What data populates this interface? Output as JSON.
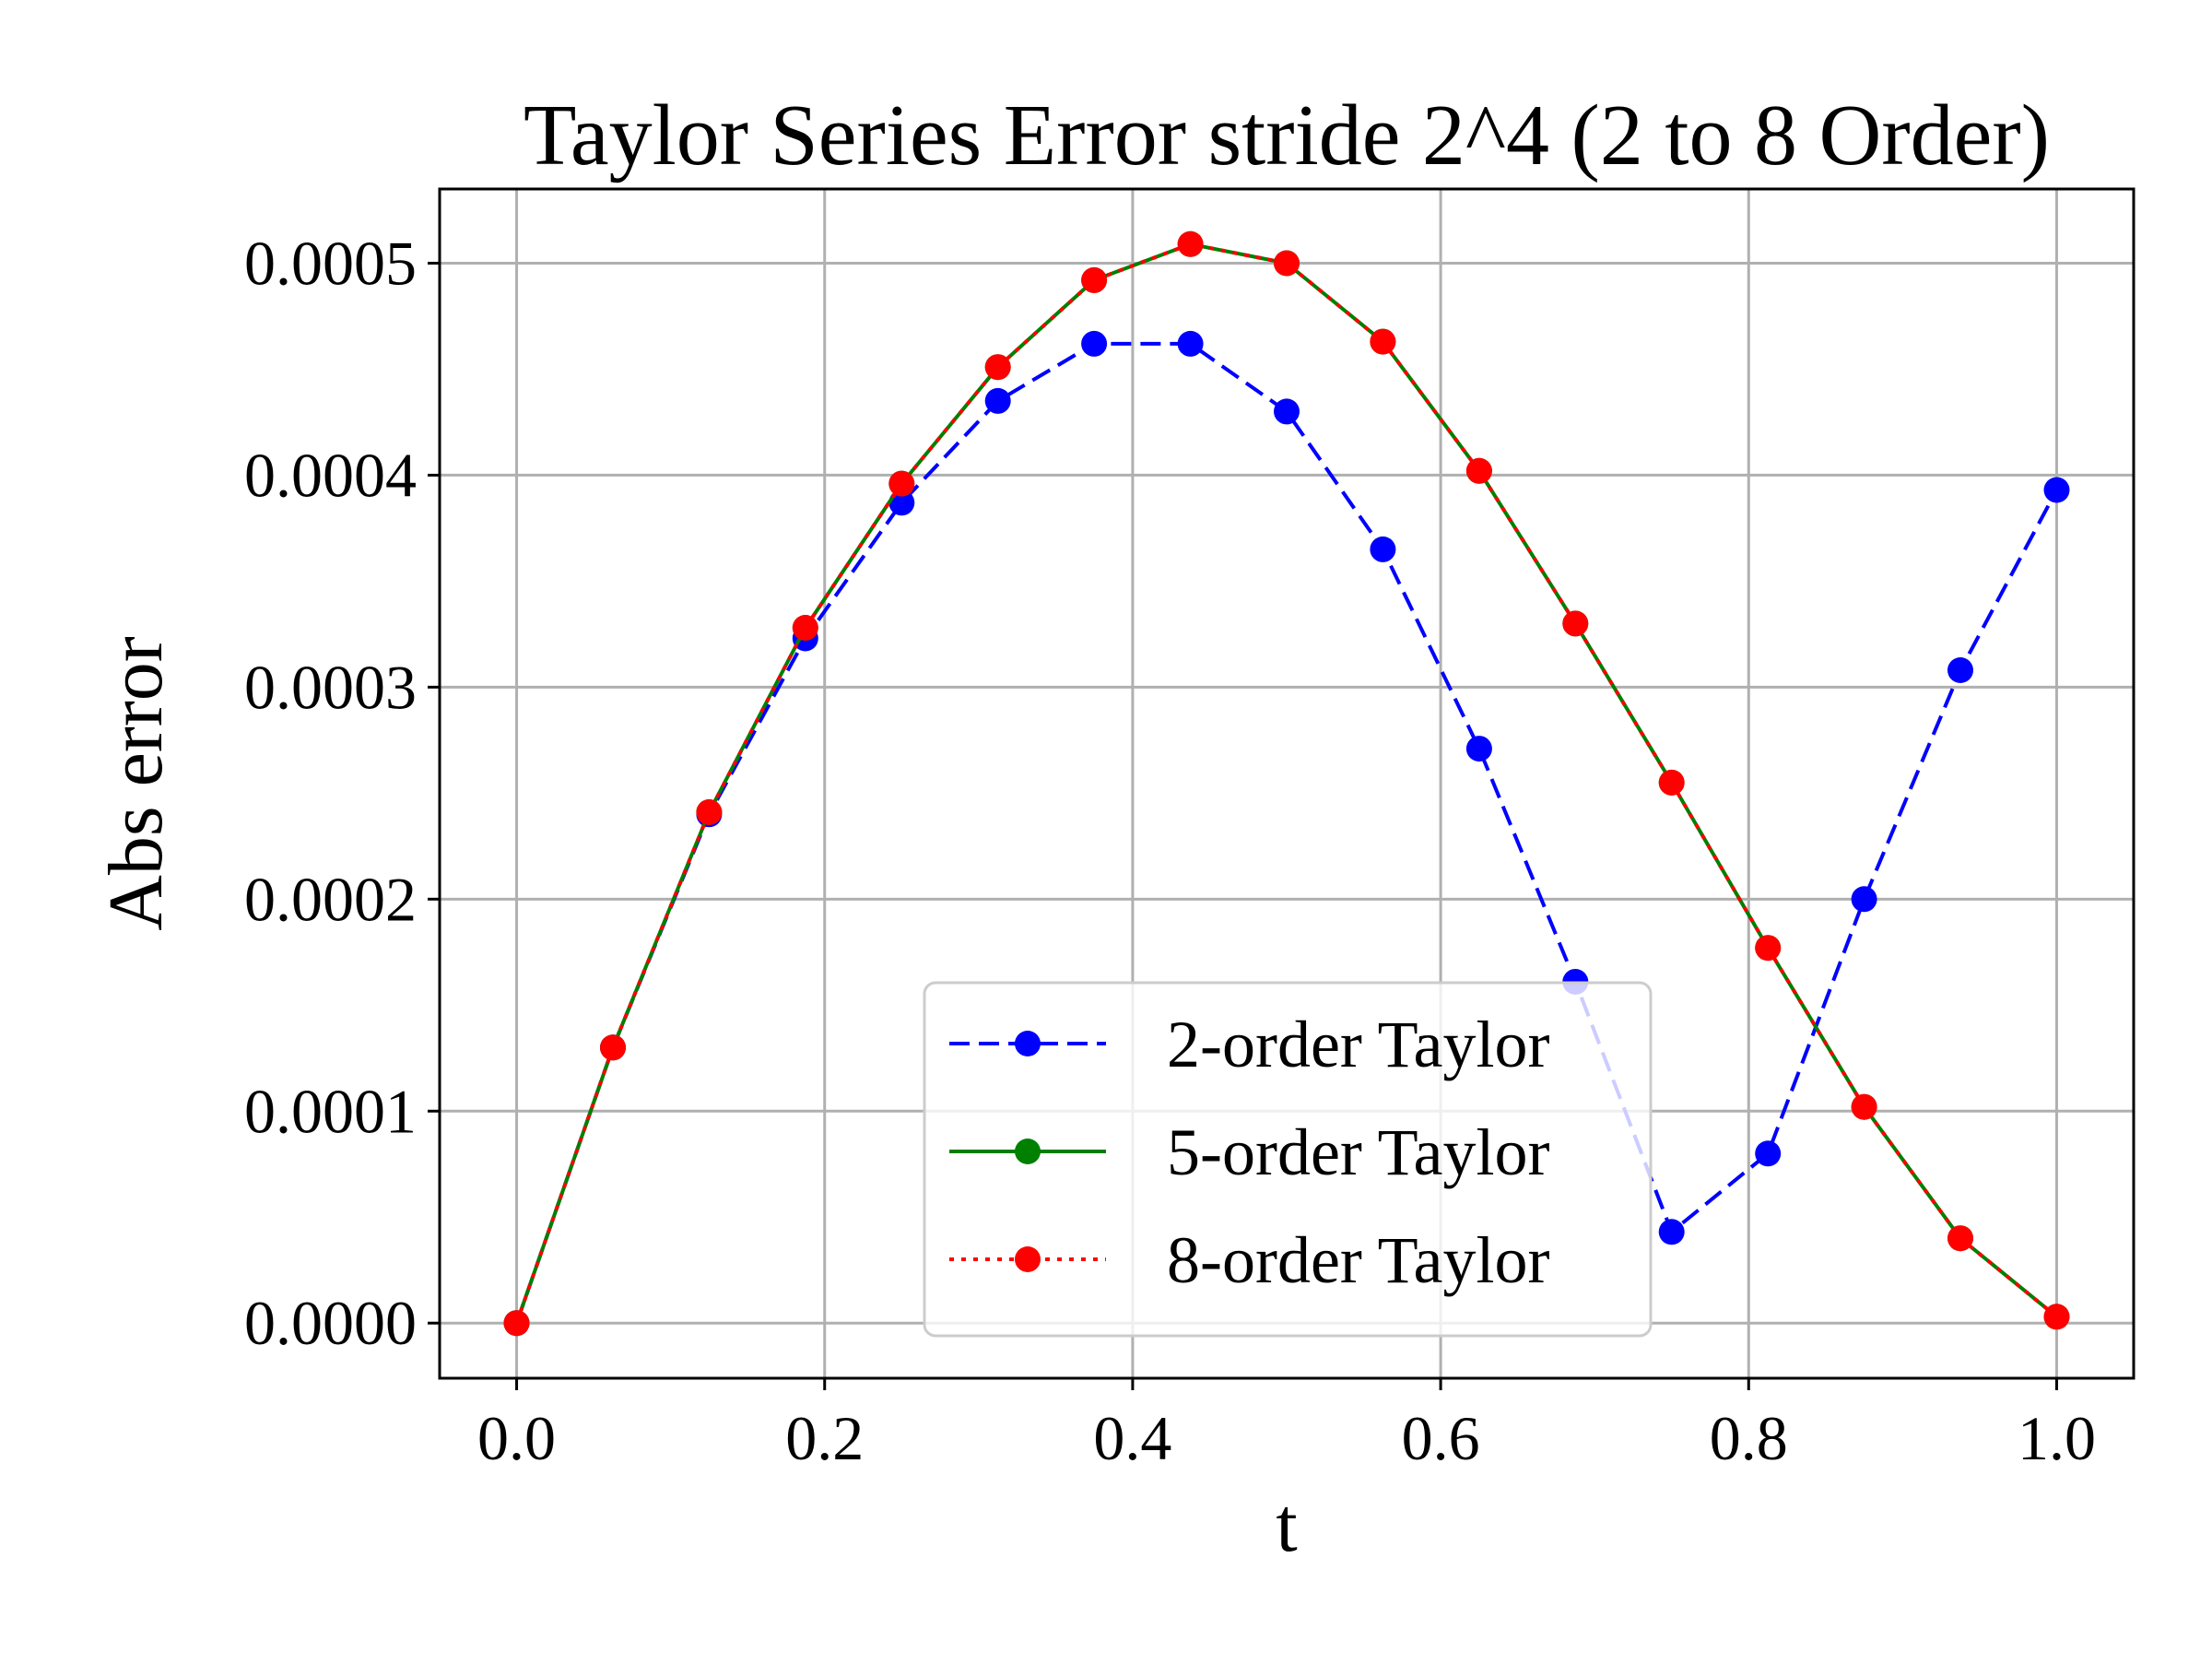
{
  "chart_data": {
    "type": "line",
    "title": "Taylor Series Error stride 2^4 (2 to 8 Order)",
    "xlabel": "t",
    "ylabel": "Abs error",
    "xlim": [
      -0.05,
      1.05
    ],
    "ylim": [
      -2.6e-05,
      0.000535
    ],
    "xticks": [
      0.0,
      0.2,
      0.4,
      0.6,
      0.8,
      1.0
    ],
    "xtick_labels": [
      "0.0",
      "0.2",
      "0.4",
      "0.6",
      "0.8",
      "1.0"
    ],
    "yticks": [
      0.0,
      0.0001,
      0.0002,
      0.0003,
      0.0004,
      0.0005
    ],
    "ytick_labels": [
      "0.0000",
      "0.0001",
      "0.0002",
      "0.0003",
      "0.0004",
      "0.0005"
    ],
    "grid": true,
    "legend_position": "lower-center",
    "x": [
      0.0,
      0.0625,
      0.125,
      0.1875,
      0.25,
      0.3125,
      0.375,
      0.4375,
      0.5,
      0.5625,
      0.625,
      0.6875,
      0.75,
      0.8125,
      0.875,
      0.9375,
      1.0
    ],
    "series": [
      {
        "name": "2-order Taylor",
        "color": "#0000ff",
        "line_style": "dashed",
        "marker": "circle",
        "values": [
          0.0,
          0.00013,
          0.00024,
          0.000323,
          0.000387,
          0.000435,
          0.000462,
          0.000462,
          0.00043,
          0.000365,
          0.000271,
          0.000161,
          4.3e-05,
          8e-05,
          0.0002,
          0.000308,
          0.000393
        ]
      },
      {
        "name": "5-order Taylor",
        "color": "#008000",
        "line_style": "solid",
        "marker": "circle",
        "values": [
          0.0,
          0.00013,
          0.000241,
          0.000328,
          0.000396,
          0.000451,
          0.000492,
          0.000509,
          0.0005,
          0.000463,
          0.000402,
          0.00033,
          0.000255,
          0.000177,
          0.000102,
          4e-05,
          3e-06
        ]
      },
      {
        "name": "8-order Taylor",
        "color": "#ff0000",
        "line_style": "dotted",
        "marker": "circle",
        "values": [
          0.0,
          0.00013,
          0.000241,
          0.000328,
          0.000396,
          0.000451,
          0.000492,
          0.000509,
          0.0005,
          0.000463,
          0.000402,
          0.00033,
          0.000255,
          0.000177,
          0.000102,
          4e-05,
          3e-06
        ]
      }
    ]
  }
}
